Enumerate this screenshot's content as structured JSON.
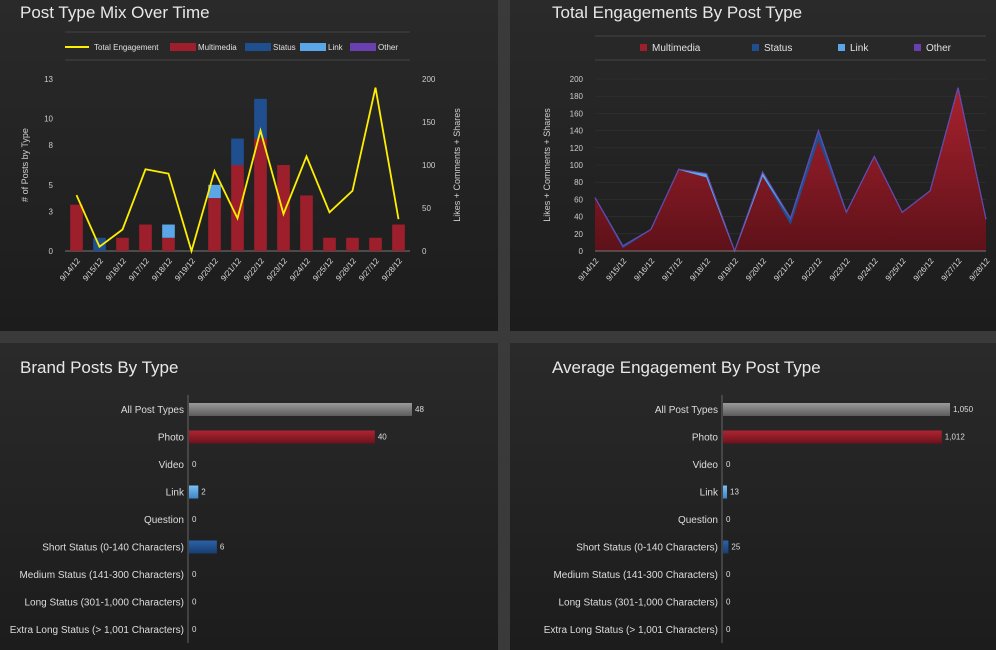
{
  "colors": {
    "multimedia": "#9c1f2b",
    "status": "#1f4f8f",
    "link": "#5aa6e6",
    "other": "#6a3fb0",
    "total": "#ffee00",
    "all": "#8a8a8a"
  },
  "chart_data": [
    {
      "type": "bar",
      "title": "Post Type Mix Over Time",
      "ylabel": "# of Posts by Type",
      "y2label": "Likes + Comments + Shares",
      "legend": [
        "Total Engagement",
        "Multimedia",
        "Status",
        "Link",
        "Other"
      ],
      "categories": [
        "9/14/12",
        "9/15/12",
        "9/16/12",
        "9/17/12",
        "9/18/12",
        "9/19/12",
        "9/20/12",
        "9/21/12",
        "9/22/12",
        "9/23/12",
        "9/24/12",
        "9/25/12",
        "9/26/12",
        "9/27/12",
        "9/28/12"
      ],
      "series": [
        {
          "name": "Multimedia",
          "values": [
            3.5,
            0,
            1,
            2,
            1,
            0,
            4,
            6.5,
            8.5,
            6.5,
            4.2,
            1,
            1,
            1,
            2
          ]
        },
        {
          "name": "Status",
          "values": [
            0,
            1,
            0,
            0,
            0,
            0,
            0,
            2,
            3,
            0,
            0,
            0,
            0,
            0,
            0
          ]
        },
        {
          "name": "Link",
          "values": [
            0,
            0,
            0,
            0,
            1,
            0,
            1,
            0,
            0,
            0,
            0,
            0,
            0,
            0,
            0
          ]
        },
        {
          "name": "Other",
          "values": [
            0,
            0,
            0,
            0,
            0,
            0,
            0,
            0,
            0,
            0,
            0,
            0,
            0,
            0,
            0
          ]
        },
        {
          "name": "Total Engagement",
          "axis": "right",
          "values": [
            65,
            5,
            25,
            95,
            90,
            0,
            93,
            38,
            140,
            43,
            110,
            45,
            70,
            190,
            37
          ]
        }
      ],
      "yticks": [
        "0",
        "3",
        "5",
        "8",
        "10",
        "13"
      ],
      "y2ticks": [
        "0",
        "50",
        "100",
        "150",
        "200"
      ],
      "ylim": [
        0,
        13
      ],
      "y2lim": [
        0,
        200
      ]
    },
    {
      "type": "area",
      "title": "Total Engagements By Post Type",
      "ylabel": "Likes + Comments + Shares",
      "legend": [
        "Multimedia",
        "Status",
        "Link",
        "Other"
      ],
      "categories": [
        "9/14/12",
        "9/15/12",
        "9/16/12",
        "9/17/12",
        "9/18/12",
        "9/19/12",
        "9/20/12",
        "9/21/12",
        "9/22/12",
        "9/23/12",
        "9/24/12",
        "9/25/12",
        "9/26/12",
        "9/27/12",
        "9/28/12"
      ],
      "series": [
        {
          "name": "Multimedia",
          "values": [
            62,
            4,
            25,
            95,
            86,
            0,
            88,
            32,
            130,
            45,
            110,
            45,
            70,
            190,
            37
          ]
        },
        {
          "name": "Status",
          "values": [
            0,
            2,
            0,
            0,
            0,
            0,
            0,
            6,
            10,
            0,
            0,
            0,
            0,
            0,
            0
          ]
        },
        {
          "name": "Link",
          "values": [
            0,
            0,
            0,
            0,
            4,
            0,
            4,
            0,
            0,
            0,
            0,
            0,
            0,
            0,
            0
          ]
        },
        {
          "name": "Other",
          "values": [
            0,
            0,
            0,
            0,
            0,
            0,
            0,
            0,
            0,
            0,
            0,
            0,
            0,
            0,
            0
          ]
        }
      ],
      "yticks": [
        "0",
        "20",
        "40",
        "60",
        "80",
        "100",
        "120",
        "140",
        "160",
        "180",
        "200"
      ],
      "ylim": [
        0,
        200
      ]
    },
    {
      "type": "bar",
      "orientation": "horizontal",
      "title": "Brand Posts By Type",
      "categories": [
        "All Post Types",
        "Photo",
        "Video",
        "Link",
        "Question",
        "Short Status (0-140 Characters)",
        "Medium Status (141-300 Characters)",
        "Long Status (301-1,000 Characters)",
        "Extra Long Status (> 1,001 Characters)"
      ],
      "values": [
        48,
        40,
        0,
        2,
        0,
        6,
        0,
        0,
        0
      ],
      "labels": [
        "48",
        "40",
        "0",
        "2",
        "0",
        "6",
        "0",
        "0",
        "0"
      ],
      "bar_colors": [
        "all",
        "multimedia",
        "multimedia",
        "link",
        "status",
        "status",
        "status",
        "status",
        "status"
      ],
      "xlim": [
        0,
        48
      ]
    },
    {
      "type": "bar",
      "orientation": "horizontal",
      "title": "Average Engagement By Post Type",
      "categories": [
        "All Post Types",
        "Photo",
        "Video",
        "Link",
        "Question",
        "Short Status (0-140 Characters)",
        "Medium Status (141-300 Characters)",
        "Long Status (301-1,000 Characters)",
        "Extra Long Status (> 1,001 Characters)"
      ],
      "values": [
        1050,
        1012,
        0,
        13,
        0,
        25,
        0,
        0,
        0
      ],
      "labels": [
        "1,050",
        "1,012",
        "0",
        "13",
        "0",
        "25",
        "0",
        "0",
        "0"
      ],
      "bar_colors": [
        "all",
        "multimedia",
        "multimedia",
        "link",
        "status",
        "status",
        "status",
        "status",
        "status"
      ],
      "xlim": [
        0,
        1050
      ]
    }
  ]
}
